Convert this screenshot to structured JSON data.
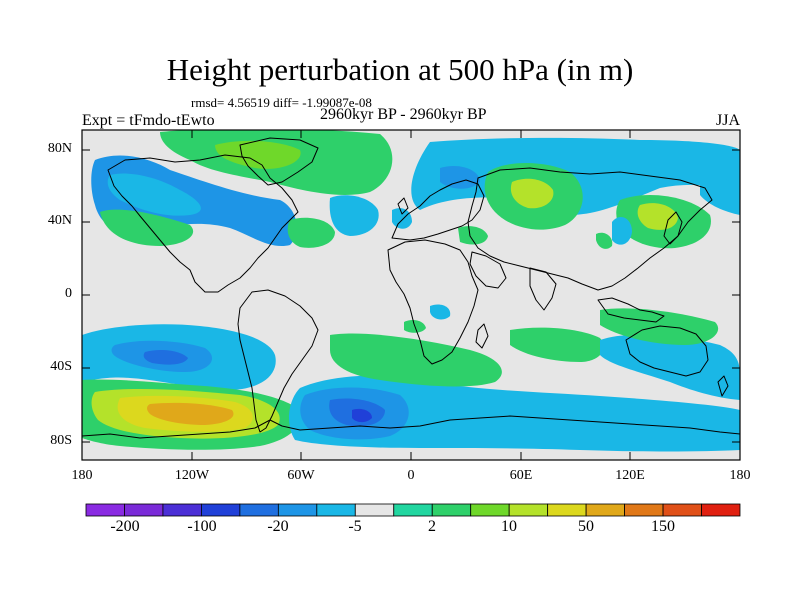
{
  "title": "Height perturbation at 500 hPa (in m)",
  "subtitle": "rmsd= 4.56519 diff= -1.99087e-08",
  "left_label": "Expt = tFmdo-tEwto",
  "center_label": "2960kyr BP - 2960kyr BP",
  "right_label": "JJA",
  "lat_ticks": [
    "80N",
    "40N",
    "0",
    "40S",
    "80S"
  ],
  "lon_ticks": [
    "180",
    "120W",
    "60W",
    "0",
    "60E",
    "120E",
    "180"
  ],
  "colorbar": {
    "labels": [
      "-200",
      "-100",
      "-20",
      "-5",
      "2",
      "10",
      "50",
      "150"
    ],
    "colors": [
      "#8a2be2",
      "#7a2ad8",
      "#4b2fd6",
      "#2040d8",
      "#1f6fe0",
      "#1e95e6",
      "#1ab7e6",
      "#e6e6e6",
      "#22d6a0",
      "#2ed06a",
      "#6fd82a",
      "#b4e22a",
      "#dcd81e",
      "#e0a81a",
      "#e07818",
      "#e05018",
      "#e02010"
    ]
  },
  "colors": {
    "ocean_background": "#e6e6e6",
    "coastline": "#000000"
  }
}
